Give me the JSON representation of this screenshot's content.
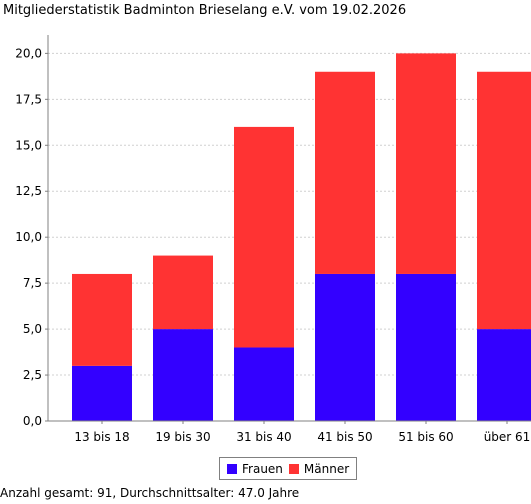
{
  "chart_data": {
    "type": "bar",
    "stacked": true,
    "title": "Mitgliederstatistik Badminton Brieselang e.V. vom 19.02.2026",
    "categories": [
      "13 bis 18",
      "19 bis 30",
      "31 bis 40",
      "41 bis 50",
      "51 bis 60",
      "über 61"
    ],
    "series": [
      {
        "name": "Frauen",
        "values": [
          3,
          5,
          4,
          8,
          8,
          5
        ],
        "color": "#3300ff"
      },
      {
        "name": "Männer",
        "values": [
          5,
          4,
          12,
          11,
          12,
          14
        ],
        "color": "#ff3333"
      }
    ],
    "ylim": [
      0,
      21
    ],
    "yticks": [
      "0,0",
      "2,5",
      "5,0",
      "7,5",
      "10,0",
      "12,5",
      "15,0",
      "17,5",
      "20,0"
    ],
    "grid": true,
    "legend": "bottom",
    "footer": "Anzahl gesamt: 91, Durchschnittsalter: 47.0 Jahre"
  }
}
